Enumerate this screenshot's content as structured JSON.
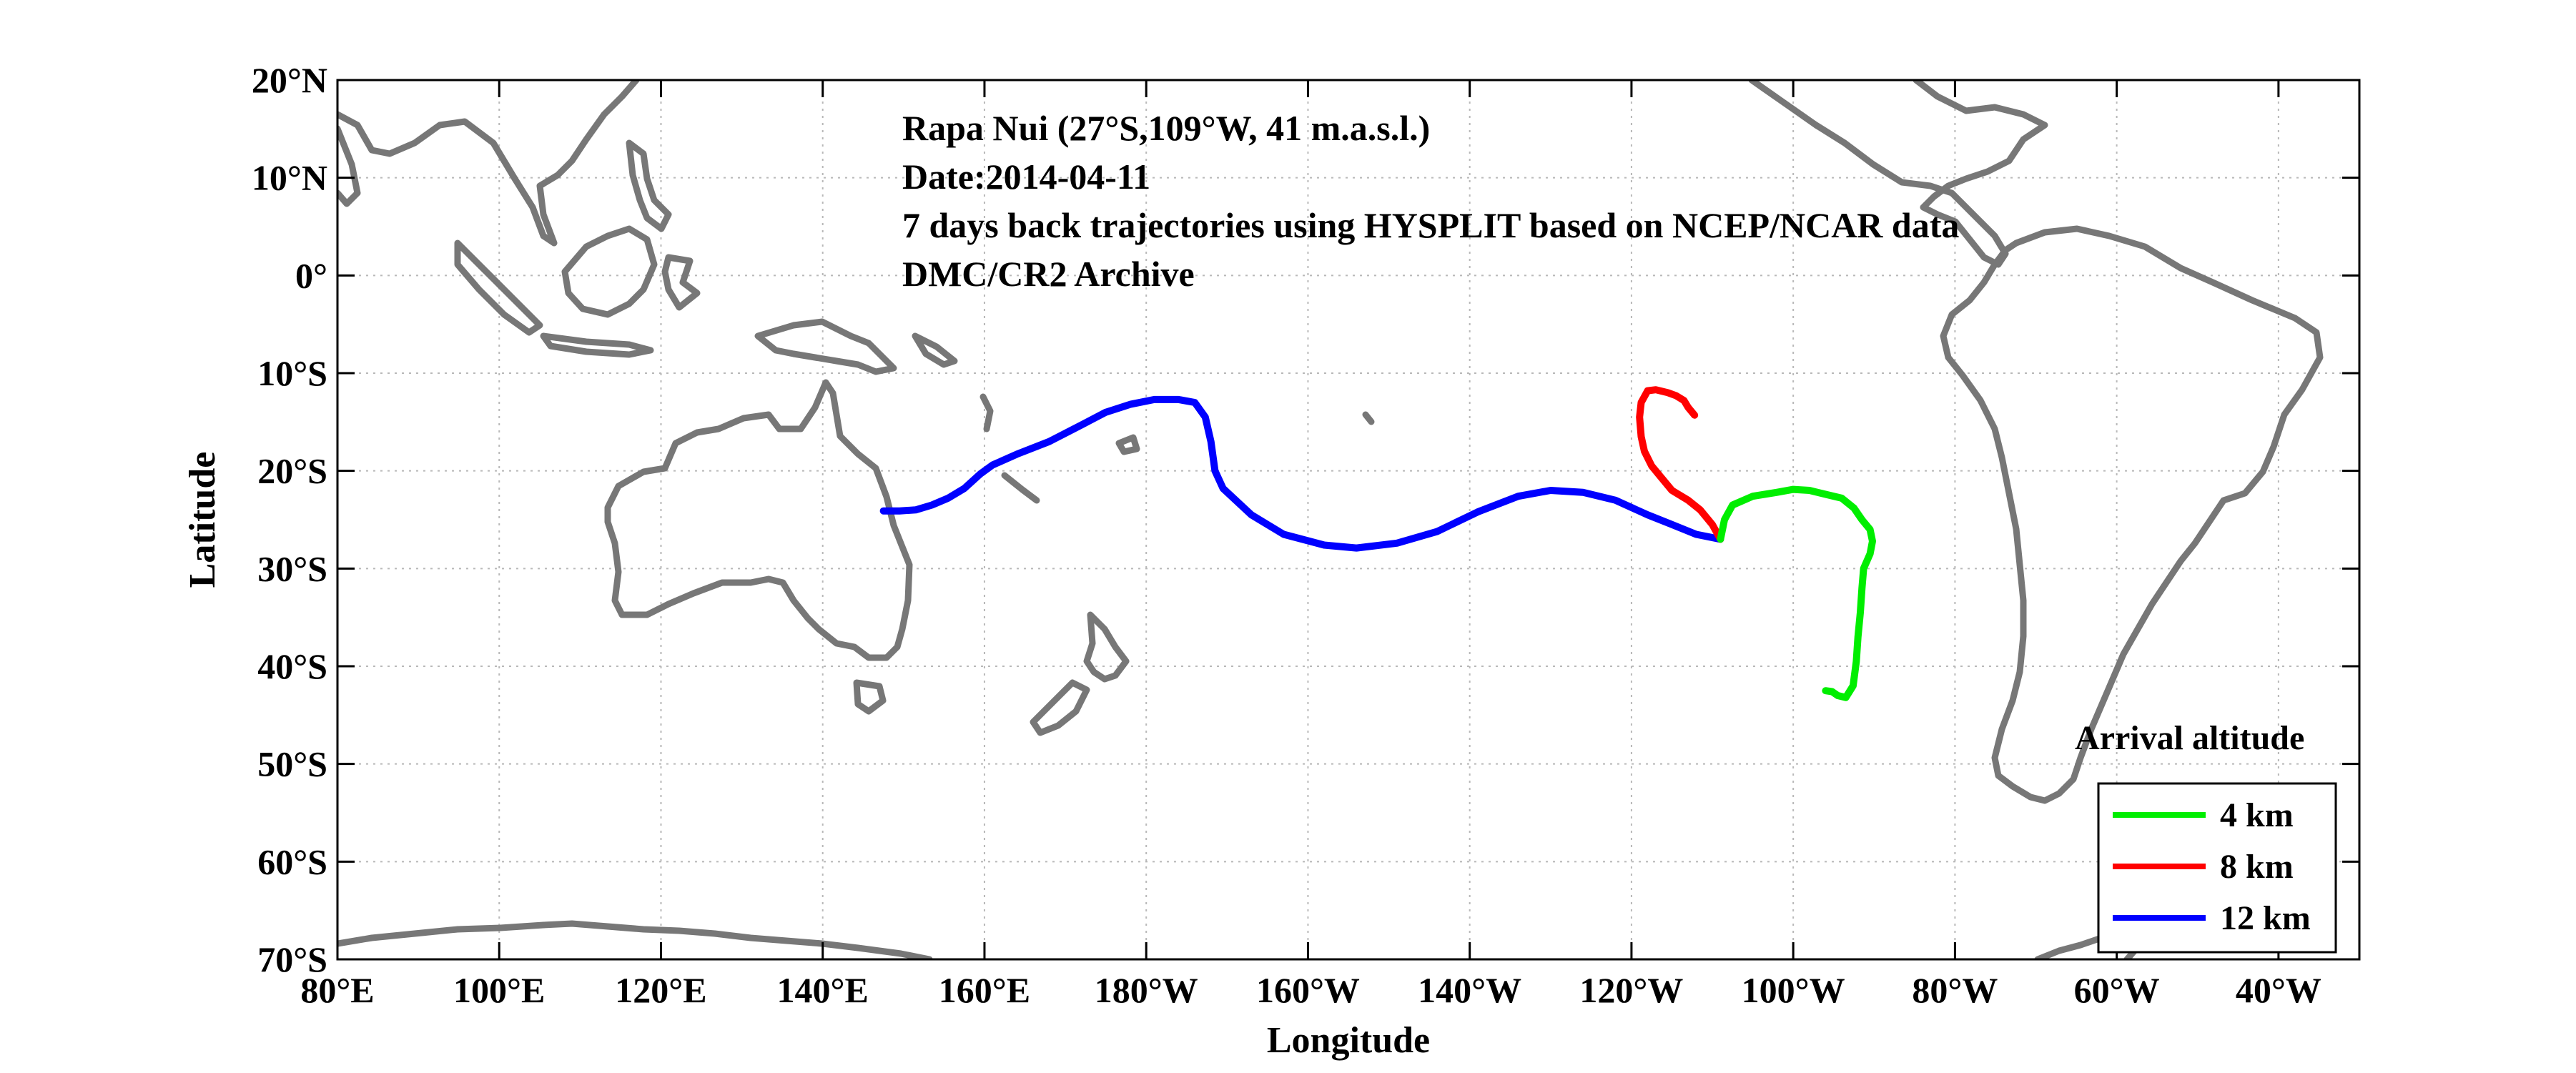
{
  "chart_data": {
    "type": "map-trajectory",
    "title_lines": [
      "Rapa Nui (27°S,109°W, 41 m.a.s.l.)",
      "Date:2014-04-11",
      "7 days back trajectories using HYSPLIT based on NCEP/NCAR data",
      "DMC/CR2 Archive"
    ],
    "xlabel": "Longitude",
    "ylabel": "Latitude",
    "xlim": [
      80,
      330
    ],
    "ylim": [
      -70,
      20
    ],
    "grid": true,
    "x_ticks": [
      {
        "value": 80,
        "label": "80°E"
      },
      {
        "value": 100,
        "label": "100°E"
      },
      {
        "value": 120,
        "label": "120°E"
      },
      {
        "value": 140,
        "label": "140°E"
      },
      {
        "value": 160,
        "label": "160°E"
      },
      {
        "value": 180,
        "label": "180°W"
      },
      {
        "value": 200,
        "label": "160°W"
      },
      {
        "value": 220,
        "label": "140°W"
      },
      {
        "value": 240,
        "label": "120°W"
      },
      {
        "value": 260,
        "label": "100°W"
      },
      {
        "value": 280,
        "label": "80°W"
      },
      {
        "value": 300,
        "label": "60°W"
      },
      {
        "value": 320,
        "label": "40°W"
      }
    ],
    "y_ticks": [
      {
        "value": 20,
        "label": "20°N"
      },
      {
        "value": 10,
        "label": "10°N"
      },
      {
        "value": 0,
        "label": "0°"
      },
      {
        "value": -10,
        "label": "10°S"
      },
      {
        "value": -20,
        "label": "20°S"
      },
      {
        "value": -30,
        "label": "30°S"
      },
      {
        "value": -40,
        "label": "40°S"
      },
      {
        "value": -50,
        "label": "50°S"
      },
      {
        "value": -60,
        "label": "60°S"
      },
      {
        "value": -70,
        "label": "70°S"
      }
    ],
    "legend_title": "Arrival altitude",
    "legend_position": "bottom-right",
    "series": [
      {
        "name": "4 km",
        "color": "#00ee00",
        "points": [
          [
            251,
            -27
          ],
          [
            251.5,
            -25
          ],
          [
            252.5,
            -23.5
          ],
          [
            255,
            -22.6
          ],
          [
            258,
            -22.2
          ],
          [
            260,
            -21.9
          ],
          [
            262,
            -22
          ],
          [
            264,
            -22.4
          ],
          [
            266,
            -22.8
          ],
          [
            267.5,
            -23.8
          ],
          [
            268.5,
            -25
          ],
          [
            269.5,
            -26
          ],
          [
            269.8,
            -27.2
          ],
          [
            269.5,
            -28.5
          ],
          [
            268.7,
            -30
          ],
          [
            268.5,
            -32
          ],
          [
            268.3,
            -34.5
          ],
          [
            268,
            -37
          ],
          [
            267.8,
            -39.5
          ],
          [
            267.4,
            -42
          ],
          [
            266.5,
            -43.2
          ],
          [
            265.5,
            -43
          ],
          [
            264.8,
            -42.6
          ],
          [
            264,
            -42.5
          ]
        ]
      },
      {
        "name": "8 km",
        "color": "#ff0000",
        "points": [
          [
            251,
            -27
          ],
          [
            250,
            -25.5
          ],
          [
            248.5,
            -24
          ],
          [
            247,
            -23
          ],
          [
            245,
            -22
          ],
          [
            243.5,
            -20.5
          ],
          [
            242.5,
            -19.5
          ],
          [
            241.6,
            -18
          ],
          [
            241.2,
            -16.5
          ],
          [
            241,
            -14.5
          ],
          [
            241.2,
            -13
          ],
          [
            242,
            -11.8
          ],
          [
            243,
            -11.7
          ],
          [
            244.5,
            -12
          ],
          [
            245.5,
            -12.3
          ],
          [
            246.5,
            -12.8
          ],
          [
            247,
            -13.5
          ],
          [
            247.8,
            -14.3
          ]
        ]
      },
      {
        "name": "12 km",
        "color": "#0000ff",
        "points": [
          [
            251,
            -27
          ],
          [
            248,
            -26.5
          ],
          [
            245,
            -25.5
          ],
          [
            242,
            -24.5
          ],
          [
            238,
            -23
          ],
          [
            234,
            -22.2
          ],
          [
            230,
            -22
          ],
          [
            226,
            -22.6
          ],
          [
            221,
            -24.2
          ],
          [
            216,
            -26.2
          ],
          [
            211,
            -27.4
          ],
          [
            206,
            -27.9
          ],
          [
            202,
            -27.6
          ],
          [
            197,
            -26.5
          ],
          [
            193,
            -24.5
          ],
          [
            189.5,
            -21.8
          ],
          [
            188.5,
            -20
          ],
          [
            188,
            -17
          ],
          [
            187.3,
            -14.5
          ],
          [
            186,
            -13
          ],
          [
            184,
            -12.7
          ],
          [
            181,
            -12.7
          ],
          [
            178,
            -13.2
          ],
          [
            175,
            -14
          ],
          [
            172,
            -15.3
          ],
          [
            168,
            -17
          ],
          [
            164,
            -18.3
          ],
          [
            161,
            -19.4
          ],
          [
            159.5,
            -20.3
          ],
          [
            157.5,
            -21.8
          ],
          [
            155.5,
            -22.8
          ],
          [
            153.5,
            -23.5
          ],
          [
            151.5,
            -24
          ],
          [
            149.5,
            -24.1
          ],
          [
            147.5,
            -24.1
          ]
        ]
      }
    ]
  }
}
